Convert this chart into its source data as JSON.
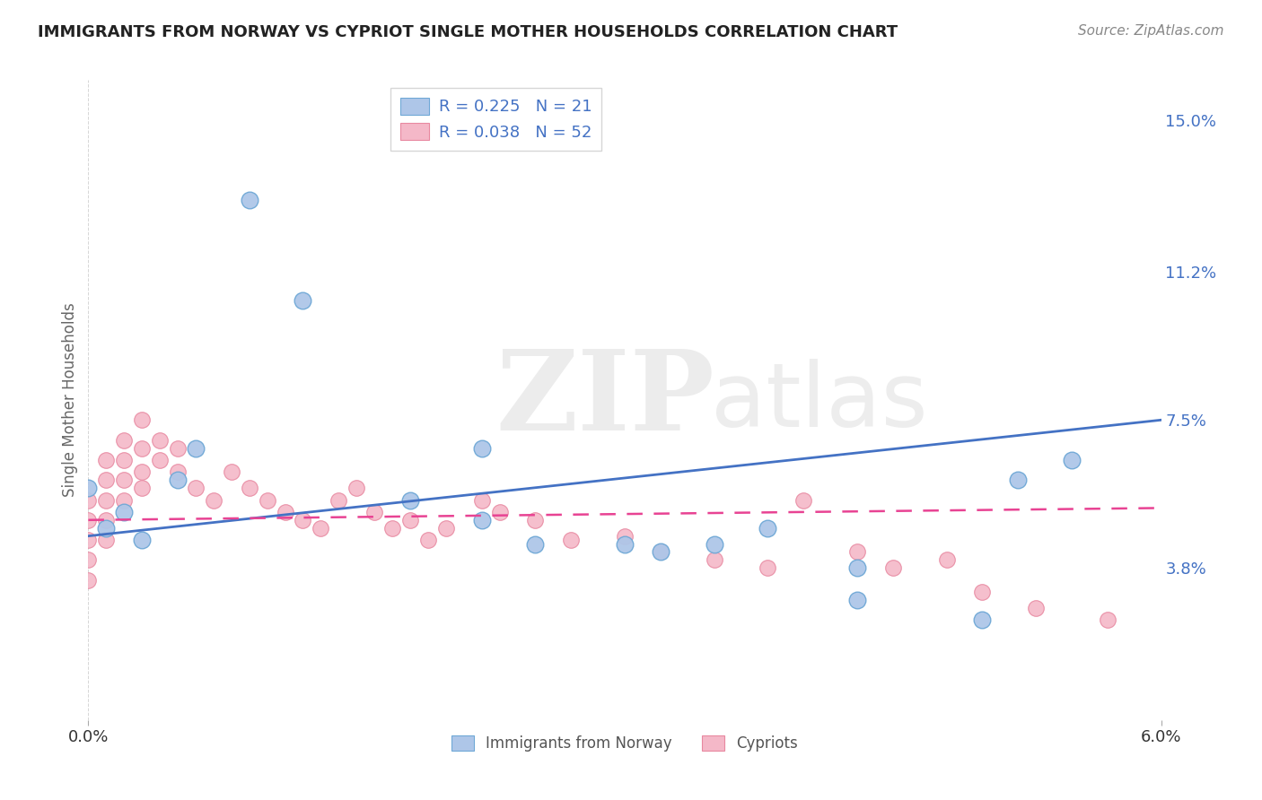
{
  "title": "IMMIGRANTS FROM NORWAY VS CYPRIOT SINGLE MOTHER HOUSEHOLDS CORRELATION CHART",
  "source": "Source: ZipAtlas.com",
  "ylabel": "Single Mother Households",
  "xlim": [
    0.0,
    0.06
  ],
  "ylim": [
    0.0,
    0.16
  ],
  "x_tick_labels": [
    "0.0%",
    "6.0%"
  ],
  "x_tick_vals": [
    0.0,
    0.06
  ],
  "y_tick_labels_right": [
    "3.8%",
    "7.5%",
    "11.2%",
    "15.0%"
  ],
  "y_tick_vals_right": [
    0.038,
    0.075,
    0.112,
    0.15
  ],
  "norway_pts_x": [
    0.0,
    0.001,
    0.002,
    0.003,
    0.005,
    0.006,
    0.009,
    0.012,
    0.018,
    0.022,
    0.022,
    0.025,
    0.03,
    0.032,
    0.035,
    0.038,
    0.043,
    0.043,
    0.05,
    0.052,
    0.055
  ],
  "norway_pts_y": [
    0.058,
    0.048,
    0.052,
    0.045,
    0.06,
    0.068,
    0.13,
    0.105,
    0.055,
    0.068,
    0.05,
    0.044,
    0.044,
    0.042,
    0.044,
    0.048,
    0.038,
    0.03,
    0.025,
    0.06,
    0.065
  ],
  "cyprus_pts_x": [
    0.0,
    0.0,
    0.0,
    0.0,
    0.0,
    0.001,
    0.001,
    0.001,
    0.001,
    0.001,
    0.002,
    0.002,
    0.002,
    0.002,
    0.003,
    0.003,
    0.003,
    0.003,
    0.004,
    0.004,
    0.005,
    0.005,
    0.006,
    0.007,
    0.008,
    0.009,
    0.01,
    0.011,
    0.012,
    0.013,
    0.014,
    0.015,
    0.016,
    0.017,
    0.018,
    0.019,
    0.02,
    0.022,
    0.023,
    0.025,
    0.027,
    0.03,
    0.032,
    0.035,
    0.038,
    0.04,
    0.043,
    0.045,
    0.048,
    0.05,
    0.053,
    0.057
  ],
  "cyprus_pts_y": [
    0.055,
    0.05,
    0.045,
    0.04,
    0.035,
    0.065,
    0.06,
    0.055,
    0.05,
    0.045,
    0.07,
    0.065,
    0.06,
    0.055,
    0.075,
    0.068,
    0.062,
    0.058,
    0.07,
    0.065,
    0.068,
    0.062,
    0.058,
    0.055,
    0.062,
    0.058,
    0.055,
    0.052,
    0.05,
    0.048,
    0.055,
    0.058,
    0.052,
    0.048,
    0.05,
    0.045,
    0.048,
    0.055,
    0.052,
    0.05,
    0.045,
    0.046,
    0.042,
    0.04,
    0.038,
    0.055,
    0.042,
    0.038,
    0.04,
    0.032,
    0.028,
    0.025
  ],
  "norway_line_x": [
    0.0,
    0.06
  ],
  "norway_line_y": [
    0.046,
    0.075
  ],
  "cyprus_line_x": [
    0.0,
    0.06
  ],
  "cyprus_line_y": [
    0.05,
    0.053
  ],
  "norway_color": "#aec6e8",
  "norway_edge_color": "#6fa8d6",
  "cyprus_color": "#f4b8c8",
  "cyprus_edge_color": "#e888a0",
  "norway_line_color": "#4472c4",
  "cyprus_line_color": "#e84393",
  "background_color": "#ffffff",
  "grid_color": "#cccccc",
  "watermark_zip_color": "#e0e0e0",
  "watermark_atlas_color": "#d8d8d8",
  "legend_r1": "R = 0.225   N = 21",
  "legend_r2": "R = 0.038   N = 52",
  "legend_label1": "Immigrants from Norway",
  "legend_label2": "Cypriots",
  "title_color": "#222222",
  "source_color": "#888888",
  "tick_color": "#4472c4",
  "ylabel_color": "#666666"
}
